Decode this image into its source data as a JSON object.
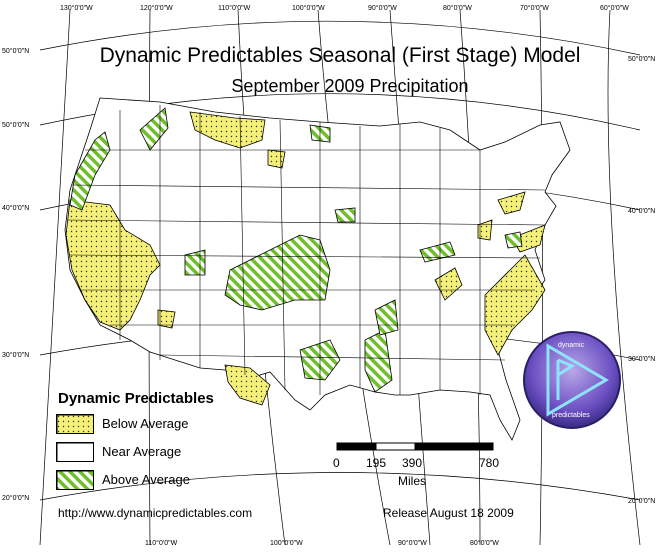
{
  "map": {
    "title": "Dynamic Predictables Seasonal (First Stage) Model",
    "subtitle": "September 2009 Precipitation",
    "colors": {
      "below": "#f5f07a",
      "below_dot": "#333300",
      "near": "#ffffff",
      "above_bg": "#ffffff",
      "above_stripe": "#6fbf2a",
      "border": "#000000"
    }
  },
  "legend": {
    "title": "Dynamic Predictables",
    "items": [
      {
        "label": "Below Average"
      },
      {
        "label": "Near Average"
      },
      {
        "label": "Above Average"
      }
    ]
  },
  "scalebar": {
    "ticks": [
      "0",
      "195",
      "390",
      "780"
    ],
    "unit": "Miles"
  },
  "footer": {
    "url": "http://www.dynamicpredictables.com",
    "release": "Release August 18 2009"
  },
  "graticule": {
    "top": [
      "130°0'0\"W",
      "120°0'0\"W",
      "110°0'0\"W",
      "100°0'0\"W",
      "90°0'0\"W",
      "80°0'0\"W",
      "70°0'0\"W",
      "60°0'0\"W"
    ],
    "bottom": [
      "110°0'0\"W",
      "100°0'0\"W",
      "90°0'0\"W",
      "80°0'0\"W"
    ],
    "left": [
      "50°0'0\"N",
      "50°0'0\"N",
      "40°0'0\"N",
      "30°0'0\"N",
      "20°0'0\"N"
    ],
    "right": [
      "50°0'0\"N",
      "40°0'0\"N",
      "30°0'0\"N",
      "20°0'0\"N"
    ]
  },
  "logo": {
    "top_text": "dynamic",
    "bottom_text": "predictables"
  }
}
